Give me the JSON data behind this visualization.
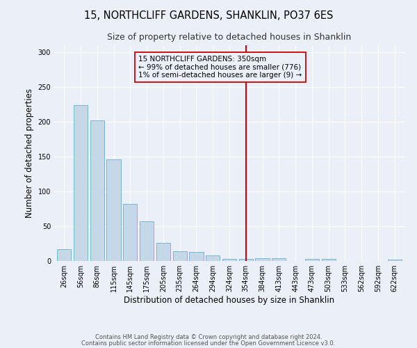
{
  "title": "15, NORTHCLIFF GARDENS, SHANKLIN, PO37 6ES",
  "subtitle": "Size of property relative to detached houses in Shanklin",
  "xlabel": "Distribution of detached houses by size in Shanklin",
  "ylabel": "Number of detached properties",
  "bar_labels": [
    "26sqm",
    "56sqm",
    "86sqm",
    "115sqm",
    "145sqm",
    "175sqm",
    "205sqm",
    "235sqm",
    "264sqm",
    "294sqm",
    "324sqm",
    "354sqm",
    "384sqm",
    "413sqm",
    "443sqm",
    "473sqm",
    "503sqm",
    "533sqm",
    "562sqm",
    "592sqm",
    "622sqm"
  ],
  "bar_values": [
    17,
    224,
    202,
    146,
    82,
    57,
    26,
    14,
    13,
    8,
    3,
    3,
    4,
    4,
    0,
    3,
    3,
    0,
    0,
    0,
    2
  ],
  "bar_color": "#c5d8e8",
  "bar_edgecolor": "#7ab5d6",
  "background_color": "#eaeff8",
  "ylim": [
    0,
    310
  ],
  "yticks": [
    0,
    50,
    100,
    150,
    200,
    250,
    300
  ],
  "vline_x": 11,
  "vline_color": "#cc0000",
  "annotation_title": "15 NORTHCLIFF GARDENS: 350sqm",
  "annotation_line1": "← 99% of detached houses are smaller (776)",
  "annotation_line2": "1% of semi-detached houses are larger (9) →",
  "annotation_box_edgecolor": "#cc0000",
  "footer_line1": "Contains HM Land Registry data © Crown copyright and database right 2024.",
  "footer_line2": "Contains public sector information licensed under the Open Government Licence v3.0.",
  "title_fontsize": 10.5,
  "subtitle_fontsize": 9,
  "axis_label_fontsize": 8.5,
  "tick_fontsize": 7,
  "annotation_fontsize": 7.5,
  "footer_fontsize": 6
}
